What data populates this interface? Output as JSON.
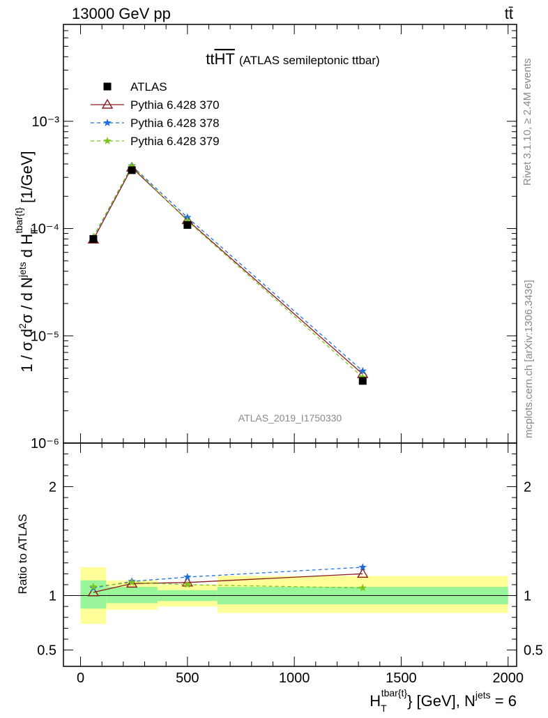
{
  "header": {
    "energy_label": "13000 GeV pp",
    "process_label": "tt̄"
  },
  "side_labels": {
    "rivet": "Rivet 3.1.10, ≥ 2.4M events",
    "mcplots": "mcplots.cern.ch [arXiv:1306.3436]"
  },
  "chart_data": [
    {
      "type": "line",
      "title": "tt",
      "title_overline": "HT",
      "subtitle": "(ATLAS semileptonic ttbar)",
      "watermark": "ATLAS_2019_I1750330",
      "ylabel": "1 / σ d²σ / d N^jets d H_T^tbar{t} [1/GeV]",
      "y_scale": "log",
      "ylim": [
        1e-06,
        0.008
      ],
      "xlim": [
        -80,
        2040
      ],
      "y_tick_labels": [
        "10⁻⁶",
        "10⁻⁵",
        "10⁻⁴",
        "10⁻³"
      ],
      "legend_position": "top-left",
      "x": [
        60,
        240,
        500,
        1320
      ],
      "series": [
        {
          "name": "ATLAS",
          "values": [
            8e-05,
            0.00035,
            0.000108,
            3.8e-06
          ],
          "color": "#000000",
          "marker": "square"
        },
        {
          "name": "Pythia 6.428 370",
          "values": [
            7.9e-05,
            0.00037,
            0.00012,
            4.4e-06
          ],
          "color": "#8b1a1a",
          "marker": "triangle",
          "dash": "solid"
        },
        {
          "name": "Pythia 6.428 378",
          "values": [
            8.3e-05,
            0.000385,
            0.000127,
            4.7e-06
          ],
          "color": "#1e6fd9",
          "marker": "star",
          "dash": "dashed"
        },
        {
          "name": "Pythia 6.428 379",
          "values": [
            8.4e-05,
            0.000382,
            0.000118,
            4.1e-06
          ],
          "color": "#7fc41c",
          "marker": "star",
          "dash": "dashed"
        }
      ]
    },
    {
      "type": "line",
      "ylabel": "Ratio to ATLAS",
      "xlabel": "H_T^tbar{t} [GeV], N^jets = 6",
      "ylim": [
        0.35,
        2.4
      ],
      "xlim": [
        -80,
        2040
      ],
      "x_tick_labels": [
        "0",
        "500",
        "1000",
        "1500",
        "2000"
      ],
      "y_tick_labels": [
        "0.5",
        "1",
        "2"
      ],
      "bins": [
        [
          0,
          120
        ],
        [
          120,
          360
        ],
        [
          360,
          640
        ],
        [
          640,
          2000
        ]
      ],
      "band_stat": [
        [
          0.88,
          1.14
        ],
        [
          0.93,
          1.08
        ],
        [
          0.95,
          1.05
        ],
        [
          0.92,
          1.08
        ]
      ],
      "band_total": [
        [
          0.74,
          1.26
        ],
        [
          0.87,
          1.14
        ],
        [
          0.9,
          1.1
        ],
        [
          0.84,
          1.18
        ]
      ],
      "x": [
        60,
        240,
        500,
        1320
      ],
      "series": [
        {
          "name": "Pythia 6.428 370",
          "values": [
            1.03,
            1.11,
            1.12,
            1.2
          ],
          "color": "#8b1a1a",
          "marker": "triangle",
          "dash": "solid"
        },
        {
          "name": "Pythia 6.428 378",
          "values": [
            1.07,
            1.13,
            1.17,
            1.26
          ],
          "color": "#1e6fd9",
          "marker": "star",
          "dash": "dashed"
        },
        {
          "name": "Pythia 6.428 379",
          "values": [
            1.08,
            1.12,
            1.1,
            1.07
          ],
          "color": "#7fc41c",
          "marker": "star",
          "dash": "dashed"
        }
      ]
    }
  ]
}
